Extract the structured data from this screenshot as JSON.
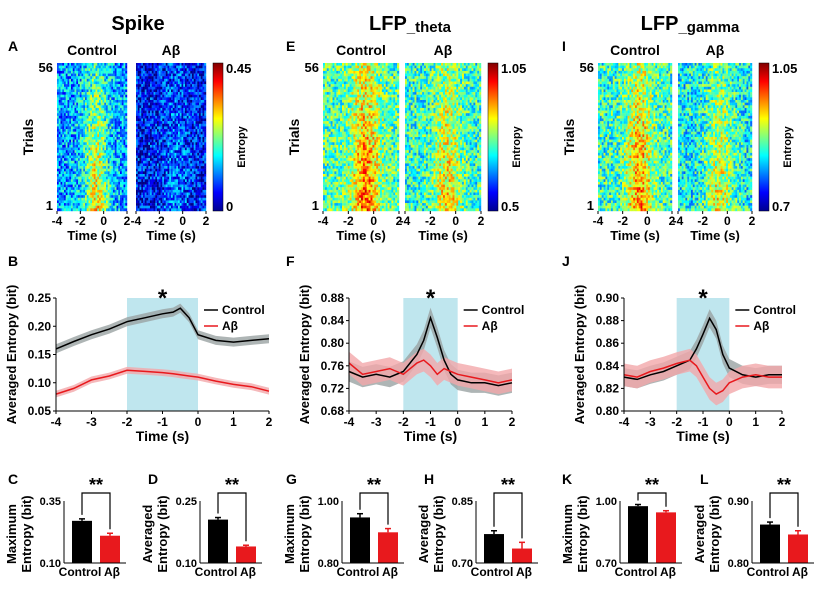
{
  "figure": {
    "column_titles": [
      {
        "main": "Spike",
        "sub": ""
      },
      {
        "main": "LFP",
        "sub": "_theta"
      },
      {
        "main": "LFP",
        "sub": "_gamma"
      }
    ],
    "common": {
      "control": "Control",
      "abeta": "Aβ",
      "trials_label": "Trials",
      "time_label": "Time (s)",
      "entropy_label": "Entropy",
      "averaged_entropy_label": "Averaged Entropy (bit)",
      "maximum_entropy_label": [
        "Maximum",
        "Entropy (bit)"
      ],
      "averaged_entropy_bar_label": [
        "Averaged",
        "Entropy (bit)"
      ],
      "sig_single": "*",
      "sig_double": "**",
      "trial_top": "56",
      "trial_bottom": "1",
      "heatmap_xticks": [
        "-4",
        "-2",
        "0",
        "2"
      ]
    },
    "colors": {
      "control": "#000000",
      "abeta": "#e8191d",
      "control_band": "#9aa3a3",
      "abeta_band": "#f2a7aa",
      "highlight": "#bfe6ee"
    }
  },
  "chart_data": [
    {
      "type": "heatmap",
      "panel": "A",
      "groups": [
        "Control",
        "Aβ"
      ],
      "trials": 56,
      "x": [
        -4,
        2
      ],
      "clim": [
        0,
        0.45
      ],
      "colorbar_ticks": [
        "0.45",
        "0"
      ],
      "colorbar_label": "Entropy",
      "xlabel": "Time (s)",
      "ylabel": "Trials"
    },
    {
      "type": "heatmap",
      "panel": "E",
      "groups": [
        "Control",
        "Aβ"
      ],
      "trials": 56,
      "x": [
        -4,
        2
      ],
      "clim": [
        0.5,
        1.05
      ],
      "colorbar_ticks": [
        "1.05",
        "0.5"
      ],
      "colorbar_label": "Entropy",
      "xlabel": "Time (s)",
      "ylabel": "Trials"
    },
    {
      "type": "heatmap",
      "panel": "I",
      "groups": [
        "Control",
        "Aβ"
      ],
      "trials": 56,
      "x": [
        -4,
        2
      ],
      "clim": [
        0.7,
        1.05
      ],
      "colorbar_ticks": [
        "1.05",
        "0.7"
      ],
      "colorbar_label": "Entropy",
      "xlabel": "Time (s)",
      "ylabel": "Trials"
    },
    {
      "type": "line",
      "panel": "B",
      "xlabel": "Time (s)",
      "ylabel": "Averaged Entropy (bit)",
      "xlim": [
        -4,
        2
      ],
      "ylim": [
        0.05,
        0.25
      ],
      "xticks": [
        -4,
        -3,
        -2,
        -1,
        0,
        1,
        2
      ],
      "yticks": [
        0.05,
        0.1,
        0.15,
        0.2,
        0.25
      ],
      "ytick_labels": [
        "0.05",
        "0.10",
        "0.15",
        "0.20",
        "0.25"
      ],
      "shade": [
        -2,
        0
      ],
      "legend": [
        "Control",
        "Aβ"
      ],
      "annotation": "*",
      "x": [
        -4,
        -3.5,
        -3,
        -2.5,
        -2,
        -1.5,
        -1,
        -0.7,
        -0.5,
        -0.25,
        0,
        0.5,
        1,
        1.5,
        2
      ],
      "series": [
        {
          "name": "Control",
          "values": [
            0.16,
            0.173,
            0.185,
            0.195,
            0.208,
            0.215,
            0.222,
            0.225,
            0.232,
            0.215,
            0.185,
            0.175,
            0.172,
            0.175,
            0.178
          ],
          "err": 0.008
        },
        {
          "name": "Aβ",
          "values": [
            0.08,
            0.09,
            0.105,
            0.112,
            0.122,
            0.12,
            0.118,
            0.116,
            0.114,
            0.112,
            0.11,
            0.103,
            0.097,
            0.093,
            0.085
          ],
          "err": 0.006
        }
      ]
    },
    {
      "type": "line",
      "panel": "F",
      "xlabel": "Time (s)",
      "ylabel": "Averaged Entropy (bit)",
      "xlim": [
        -4,
        2
      ],
      "ylim": [
        0.68,
        0.88
      ],
      "xticks": [
        -4,
        -3,
        -2,
        -1,
        0,
        1,
        2
      ],
      "yticks": [
        0.68,
        0.72,
        0.76,
        0.8,
        0.84,
        0.88
      ],
      "ytick_labels": [
        "0.68",
        "0.72",
        "0.76",
        "0.80",
        "0.84",
        "0.88"
      ],
      "shade": [
        -2,
        0
      ],
      "legend": [
        "Control",
        "Aβ"
      ],
      "annotation": "*",
      "x": [
        -4,
        -3.5,
        -3,
        -2.5,
        -2,
        -1.5,
        -1.25,
        -1,
        -0.75,
        -0.5,
        -0.25,
        0,
        0.5,
        1,
        1.5,
        2
      ],
      "series": [
        {
          "name": "Control",
          "values": [
            0.75,
            0.74,
            0.745,
            0.74,
            0.75,
            0.78,
            0.805,
            0.845,
            0.81,
            0.77,
            0.745,
            0.735,
            0.73,
            0.73,
            0.725,
            0.73
          ],
          "err": 0.018
        },
        {
          "name": "Aβ",
          "values": [
            0.765,
            0.745,
            0.75,
            0.755,
            0.745,
            0.765,
            0.77,
            0.76,
            0.745,
            0.755,
            0.75,
            0.745,
            0.74,
            0.735,
            0.73,
            0.735
          ],
          "err": 0.02
        }
      ]
    },
    {
      "type": "line",
      "panel": "J",
      "xlabel": "Time (s)",
      "ylabel": "Averaged Entropy (bit)",
      "xlim": [
        -4,
        2
      ],
      "ylim": [
        0.8,
        0.9
      ],
      "xticks": [
        -4,
        -3,
        -2,
        -1,
        0,
        1,
        2
      ],
      "yticks": [
        0.8,
        0.82,
        0.84,
        0.86,
        0.88,
        0.9
      ],
      "ytick_labels": [
        "0.80",
        "0.82",
        "0.84",
        "0.86",
        "0.88",
        "0.90"
      ],
      "shade": [
        -2,
        0
      ],
      "legend": [
        "Control",
        "Aβ"
      ],
      "annotation": "*",
      "x": [
        -4,
        -3.5,
        -3,
        -2.5,
        -2,
        -1.5,
        -1.25,
        -1,
        -0.75,
        -0.5,
        -0.25,
        0,
        0.5,
        1,
        1.5,
        2
      ],
      "series": [
        {
          "name": "Control",
          "values": [
            0.83,
            0.828,
            0.832,
            0.835,
            0.84,
            0.845,
            0.855,
            0.868,
            0.882,
            0.872,
            0.85,
            0.838,
            0.832,
            0.83,
            0.832,
            0.832
          ],
          "err": 0.008
        },
        {
          "name": "Aβ",
          "values": [
            0.832,
            0.83,
            0.835,
            0.838,
            0.842,
            0.845,
            0.84,
            0.83,
            0.82,
            0.815,
            0.818,
            0.825,
            0.83,
            0.832,
            0.83,
            0.83
          ],
          "err": 0.01
        }
      ]
    },
    {
      "type": "bar",
      "panel": "C",
      "categories": [
        "Control",
        "Aβ"
      ],
      "values": [
        0.27,
        0.21
      ],
      "errors": [
        0.008,
        0.01
      ],
      "ylim": [
        0.1,
        0.35
      ],
      "ytick_labels": [
        "0.10",
        "0.35"
      ],
      "ylabel": [
        "Maximum",
        "Entropy (bit)"
      ],
      "annotation": "**"
    },
    {
      "type": "bar",
      "panel": "D",
      "categories": [
        "Control",
        "Aβ"
      ],
      "values": [
        0.205,
        0.14
      ],
      "errors": [
        0.005,
        0.003
      ],
      "ylim": [
        0.1,
        0.25
      ],
      "ytick_labels": [
        "0.10",
        "0.25"
      ],
      "ylabel": [
        "Averaged",
        "Entropy (bit)"
      ],
      "annotation": "**"
    },
    {
      "type": "bar",
      "panel": "G",
      "categories": [
        "Control",
        "Aβ"
      ],
      "values": [
        0.947,
        0.899
      ],
      "errors": [
        0.012,
        0.012
      ],
      "ylim": [
        0.8,
        1.0
      ],
      "ytick_labels": [
        "0.80",
        "1.00"
      ],
      "ylabel": [
        "Maximum",
        "Entropy (bit)"
      ],
      "annotation": "**"
    },
    {
      "type": "bar",
      "panel": "H",
      "categories": [
        "Control",
        "Aβ"
      ],
      "values": [
        0.77,
        0.735
      ],
      "errors": [
        0.008,
        0.015
      ],
      "ylim": [
        0.7,
        0.85
      ],
      "ytick_labels": [
        "0.70",
        "0.85"
      ],
      "ylabel": [
        "Averaged",
        "Entropy (bit)"
      ],
      "annotation": "**"
    },
    {
      "type": "bar",
      "panel": "K",
      "categories": [
        "Control",
        "Aβ"
      ],
      "values": [
        0.975,
        0.945
      ],
      "errors": [
        0.008,
        0.008
      ],
      "ylim": [
        0.7,
        1.0
      ],
      "ytick_labels": [
        "0.70",
        "1.00"
      ],
      "ylabel": [
        "Maximum",
        "Entropy (bit)"
      ],
      "annotation": "**"
    },
    {
      "type": "bar",
      "panel": "L",
      "categories": [
        "Control",
        "Aβ"
      ],
      "values": [
        0.862,
        0.846
      ],
      "errors": [
        0.004,
        0.006
      ],
      "ylim": [
        0.8,
        0.9
      ],
      "ytick_labels": [
        "0.80",
        "0.90"
      ],
      "ylabel": [
        "Averaged",
        "Entropy (bit)"
      ],
      "annotation": "**"
    }
  ]
}
